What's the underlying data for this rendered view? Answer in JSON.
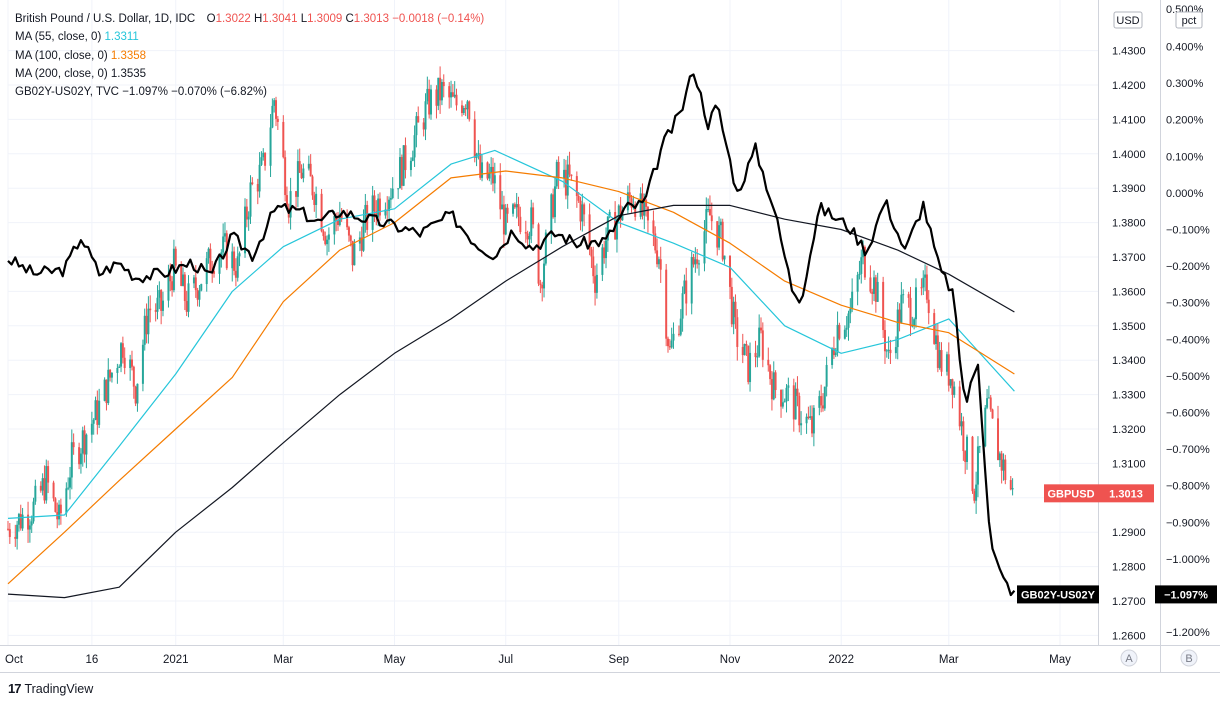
{
  "legend": {
    "symbol": "British Pound / U.S. Dollar, 1D, IDC",
    "o_label": "O",
    "o_value": "1.3022",
    "h_label": "H",
    "h_value": "1.3041",
    "l_label": "L",
    "l_value": "1.3009",
    "c_label": "C",
    "c_value": "1.3013",
    "change": "−0.0018 (−0.14%)",
    "ma55_label": "MA (55, close, 0)",
    "ma55_value": "1.3311",
    "ma100_label": "MA (100, close, 0)",
    "ma100_value": "1.3358",
    "ma200_label": "MA (200, close, 0)",
    "ma200_value": "1.3535",
    "spread_label": "GB02Y-US02Y, TVC",
    "spread_value": "−1.097%  −0.070% (−6.82%)"
  },
  "axes": {
    "usd_unit": "USD",
    "pct_unit": "pct",
    "pct_top_tick": "0.500%",
    "usd_ticks": [
      "1.4300",
      "1.4200",
      "1.4100",
      "1.4000",
      "1.3900",
      "1.3800",
      "1.3700",
      "1.3600",
      "1.3500",
      "1.3400",
      "1.3300",
      "1.3200",
      "1.3100",
      "1.2900",
      "1.2800",
      "1.2700",
      "1.2600"
    ],
    "pct_ticks": [
      "0.400%",
      "0.300%",
      "0.200%",
      "0.100%",
      "0.000%",
      "−0.100%",
      "−0.200%",
      "−0.300%",
      "−0.400%",
      "−0.500%",
      "−0.600%",
      "−0.700%",
      "−0.800%",
      "−0.900%",
      "−1.000%",
      "−1.200%"
    ],
    "x_ticks": [
      "Oct",
      "16",
      "2021",
      "Mar",
      "May",
      "Jul",
      "Sep",
      "Nov",
      "2022",
      "Mar",
      "May"
    ],
    "scale_buttons": [
      "A",
      "B"
    ]
  },
  "badges": {
    "gbpusd_label": "GBPUSD",
    "gbpusd_value": "1.3013",
    "spread_label": "GB02Y-US02Y",
    "spread_value": "−1.097%"
  },
  "colors": {
    "up": "#26a69a",
    "down": "#ef5350",
    "ma55": "#26c6da",
    "ma100": "#f57c00",
    "ma200": "#131722",
    "spread": "#000000",
    "grid": "#f0f3fa",
    "axis_text": "#131722"
  },
  "chart_data": {
    "type": "line",
    "title": "British Pound / U.S. Dollar, 1D, IDC",
    "x_range": [
      "2020-10-01",
      "2022-04-06"
    ],
    "y_left": {
      "unit": "pct",
      "range": [
        -1.25,
        0.5
      ]
    },
    "y_right": {
      "unit": "USD",
      "range": [
        1.256,
        1.436
      ]
    },
    "series": [
      {
        "name": "GBPUSD",
        "kind": "candle-close",
        "points": [
          [
            "2020-10-01",
            1.291
          ],
          [
            "2020-10-08",
            1.294
          ],
          [
            "2020-10-15",
            1.297
          ],
          [
            "2020-10-22",
            1.305
          ],
          [
            "2020-10-29",
            1.293
          ],
          [
            "2020-11-05",
            1.311
          ],
          [
            "2020-11-12",
            1.318
          ],
          [
            "2020-11-19",
            1.325
          ],
          [
            "2020-11-26",
            1.335
          ],
          [
            "2020-12-03",
            1.345
          ],
          [
            "2020-12-10",
            1.332
          ],
          [
            "2020-12-17",
            1.355
          ],
          [
            "2020-12-24",
            1.355
          ],
          [
            "2020-12-31",
            1.367
          ],
          [
            "2021-01-07",
            1.357
          ],
          [
            "2021-01-14",
            1.363
          ],
          [
            "2021-01-21",
            1.37
          ],
          [
            "2021-01-28",
            1.372
          ],
          [
            "2021-02-04",
            1.367
          ],
          [
            "2021-02-11",
            1.389
          ],
          [
            "2021-02-18",
            1.396
          ],
          [
            "2021-02-24",
            1.416
          ],
          [
            "2021-03-04",
            1.386
          ],
          [
            "2021-03-11",
            1.395
          ],
          [
            "2021-03-18",
            1.39
          ],
          [
            "2021-03-25",
            1.376
          ],
          [
            "2021-04-01",
            1.383
          ],
          [
            "2021-04-08",
            1.37
          ],
          [
            "2021-04-15",
            1.38
          ],
          [
            "2021-04-22",
            1.386
          ],
          [
            "2021-04-29",
            1.39
          ],
          [
            "2021-05-06",
            1.397
          ],
          [
            "2021-05-13",
            1.406
          ],
          [
            "2021-05-20",
            1.415
          ],
          [
            "2021-05-27",
            1.418
          ],
          [
            "2021-06-03",
            1.414
          ],
          [
            "2021-06-10",
            1.417
          ],
          [
            "2021-06-17",
            1.393
          ],
          [
            "2021-06-24",
            1.393
          ],
          [
            "2021-07-01",
            1.379
          ],
          [
            "2021-07-08",
            1.382
          ],
          [
            "2021-07-15",
            1.38
          ],
          [
            "2021-07-20",
            1.363
          ],
          [
            "2021-07-29",
            1.393
          ],
          [
            "2021-08-05",
            1.392
          ],
          [
            "2021-08-12",
            1.383
          ],
          [
            "2021-08-19",
            1.364
          ],
          [
            "2021-08-26",
            1.377
          ],
          [
            "2021-09-02",
            1.383
          ],
          [
            "2021-09-09",
            1.388
          ],
          [
            "2021-09-16",
            1.38
          ],
          [
            "2021-09-23",
            1.371
          ],
          [
            "2021-09-29",
            1.342
          ],
          [
            "2021-10-07",
            1.359
          ],
          [
            "2021-10-14",
            1.372
          ],
          [
            "2021-10-21",
            1.382
          ],
          [
            "2021-10-28",
            1.374
          ],
          [
            "2021-11-04",
            1.348
          ],
          [
            "2021-11-11",
            1.338
          ],
          [
            "2021-11-18",
            1.346
          ],
          [
            "2021-11-25",
            1.332
          ],
          [
            "2021-12-02",
            1.33
          ],
          [
            "2021-12-09",
            1.325
          ],
          [
            "2021-12-16",
            1.32
          ],
          [
            "2021-12-22",
            1.33
          ],
          [
            "2021-12-30",
            1.35
          ],
          [
            "2022-01-06",
            1.354
          ],
          [
            "2022-01-13",
            1.37
          ],
          [
            "2022-01-20",
            1.361
          ],
          [
            "2022-01-27",
            1.34
          ],
          [
            "2022-02-03",
            1.356
          ],
          [
            "2022-02-10",
            1.355
          ],
          [
            "2022-02-17",
            1.361
          ],
          [
            "2022-02-24",
            1.34
          ],
          [
            "2022-03-03",
            1.335
          ],
          [
            "2022-03-10",
            1.315
          ],
          [
            "2022-03-15",
            1.303
          ],
          [
            "2022-03-22",
            1.326
          ],
          [
            "2022-03-29",
            1.312
          ],
          [
            "2022-04-05",
            1.301
          ]
        ]
      },
      {
        "name": "MA (55, close, 0)",
        "points": [
          [
            "2020-10-01",
            1.294
          ],
          [
            "2020-11-01",
            1.295
          ],
          [
            "2020-12-01",
            1.315
          ],
          [
            "2021-01-01",
            1.336
          ],
          [
            "2021-02-01",
            1.36
          ],
          [
            "2021-03-01",
            1.373
          ],
          [
            "2021-04-01",
            1.381
          ],
          [
            "2021-05-01",
            1.384
          ],
          [
            "2021-06-01",
            1.397
          ],
          [
            "2021-06-25",
            1.401
          ],
          [
            "2021-08-01",
            1.392
          ],
          [
            "2021-09-01",
            1.38
          ],
          [
            "2021-10-01",
            1.374
          ],
          [
            "2021-11-01",
            1.367
          ],
          [
            "2021-12-01",
            1.35
          ],
          [
            "2022-01-01",
            1.342
          ],
          [
            "2022-02-01",
            1.346
          ],
          [
            "2022-03-01",
            1.352
          ],
          [
            "2022-04-06",
            1.331
          ]
        ]
      },
      {
        "name": "MA (100, close, 0)",
        "points": [
          [
            "2020-10-01",
            1.275
          ],
          [
            "2020-11-01",
            1.29
          ],
          [
            "2020-12-01",
            1.305
          ],
          [
            "2021-01-01",
            1.32
          ],
          [
            "2021-02-01",
            1.335
          ],
          [
            "2021-03-01",
            1.357
          ],
          [
            "2021-04-01",
            1.372
          ],
          [
            "2021-05-01",
            1.38
          ],
          [
            "2021-06-01",
            1.393
          ],
          [
            "2021-07-01",
            1.395
          ],
          [
            "2021-08-01",
            1.393
          ],
          [
            "2021-09-01",
            1.389
          ],
          [
            "2021-10-01",
            1.383
          ],
          [
            "2021-11-01",
            1.374
          ],
          [
            "2021-12-01",
            1.363
          ],
          [
            "2022-01-01",
            1.356
          ],
          [
            "2022-02-01",
            1.351
          ],
          [
            "2022-03-01",
            1.348
          ],
          [
            "2022-04-06",
            1.336
          ]
        ]
      },
      {
        "name": "MA (200, close, 0)",
        "points": [
          [
            "2020-10-01",
            1.272
          ],
          [
            "2020-11-01",
            1.271
          ],
          [
            "2020-12-01",
            1.274
          ],
          [
            "2021-01-01",
            1.29
          ],
          [
            "2021-02-01",
            1.303
          ],
          [
            "2021-03-01",
            1.316
          ],
          [
            "2021-04-01",
            1.33
          ],
          [
            "2021-05-01",
            1.342
          ],
          [
            "2021-06-01",
            1.352
          ],
          [
            "2021-07-01",
            1.363
          ],
          [
            "2021-08-01",
            1.373
          ],
          [
            "2021-09-01",
            1.382
          ],
          [
            "2021-10-01",
            1.385
          ],
          [
            "2021-11-01",
            1.385
          ],
          [
            "2021-12-01",
            1.381
          ],
          [
            "2022-01-01",
            1.378
          ],
          [
            "2022-02-01",
            1.372
          ],
          [
            "2022-03-01",
            1.365
          ],
          [
            "2022-04-06",
            1.354
          ]
        ]
      },
      {
        "name": "GB02Y-US02Y",
        "axis": "left",
        "points": [
          [
            "2020-10-01",
            -0.18
          ],
          [
            "2020-10-15",
            -0.22
          ],
          [
            "2020-11-01",
            -0.21
          ],
          [
            "2020-11-10",
            -0.12
          ],
          [
            "2020-11-20",
            -0.22
          ],
          [
            "2020-12-01",
            -0.19
          ],
          [
            "2020-12-10",
            -0.23
          ],
          [
            "2020-12-25",
            -0.22
          ],
          [
            "2021-01-10",
            -0.19
          ],
          [
            "2021-01-20",
            -0.23
          ],
          [
            "2021-02-01",
            -0.12
          ],
          [
            "2021-02-12",
            -0.17
          ],
          [
            "2021-02-25",
            -0.04
          ],
          [
            "2021-03-10",
            -0.05
          ],
          [
            "2021-03-20",
            -0.08
          ],
          [
            "2021-04-01",
            -0.05
          ],
          [
            "2021-04-15",
            -0.07
          ],
          [
            "2021-05-01",
            -0.09
          ],
          [
            "2021-05-15",
            -0.11
          ],
          [
            "2021-06-01",
            -0.06
          ],
          [
            "2021-06-15",
            -0.14
          ],
          [
            "2021-06-25",
            -0.17
          ],
          [
            "2021-07-05",
            -0.1
          ],
          [
            "2021-07-15",
            -0.15
          ],
          [
            "2021-07-29",
            -0.11
          ],
          [
            "2021-08-10",
            -0.14
          ],
          [
            "2021-08-25",
            -0.13
          ],
          [
            "2021-09-05",
            -0.04
          ],
          [
            "2021-09-15",
            -0.03
          ],
          [
            "2021-09-25",
            0.13
          ],
          [
            "2021-10-05",
            0.22
          ],
          [
            "2021-10-12",
            0.34
          ],
          [
            "2021-10-20",
            0.19
          ],
          [
            "2021-10-25",
            0.24
          ],
          [
            "2021-11-05",
            0.0
          ],
          [
            "2021-11-15",
            0.12
          ],
          [
            "2021-11-25",
            -0.04
          ],
          [
            "2021-12-05",
            -0.26
          ],
          [
            "2021-12-10",
            -0.29
          ],
          [
            "2021-12-20",
            -0.04
          ],
          [
            "2022-01-05",
            -0.09
          ],
          [
            "2022-01-15",
            -0.16
          ],
          [
            "2022-01-25",
            -0.02
          ],
          [
            "2022-02-05",
            -0.16
          ],
          [
            "2022-02-15",
            -0.03
          ],
          [
            "2022-02-24",
            -0.21
          ],
          [
            "2022-03-03",
            -0.27
          ],
          [
            "2022-03-10",
            -0.58
          ],
          [
            "2022-03-17",
            -0.46
          ],
          [
            "2022-03-24",
            -0.96
          ],
          [
            "2022-03-30",
            -1.05
          ],
          [
            "2022-04-06",
            -1.097
          ]
        ]
      }
    ],
    "grid": true,
    "legend": "top-left"
  }
}
